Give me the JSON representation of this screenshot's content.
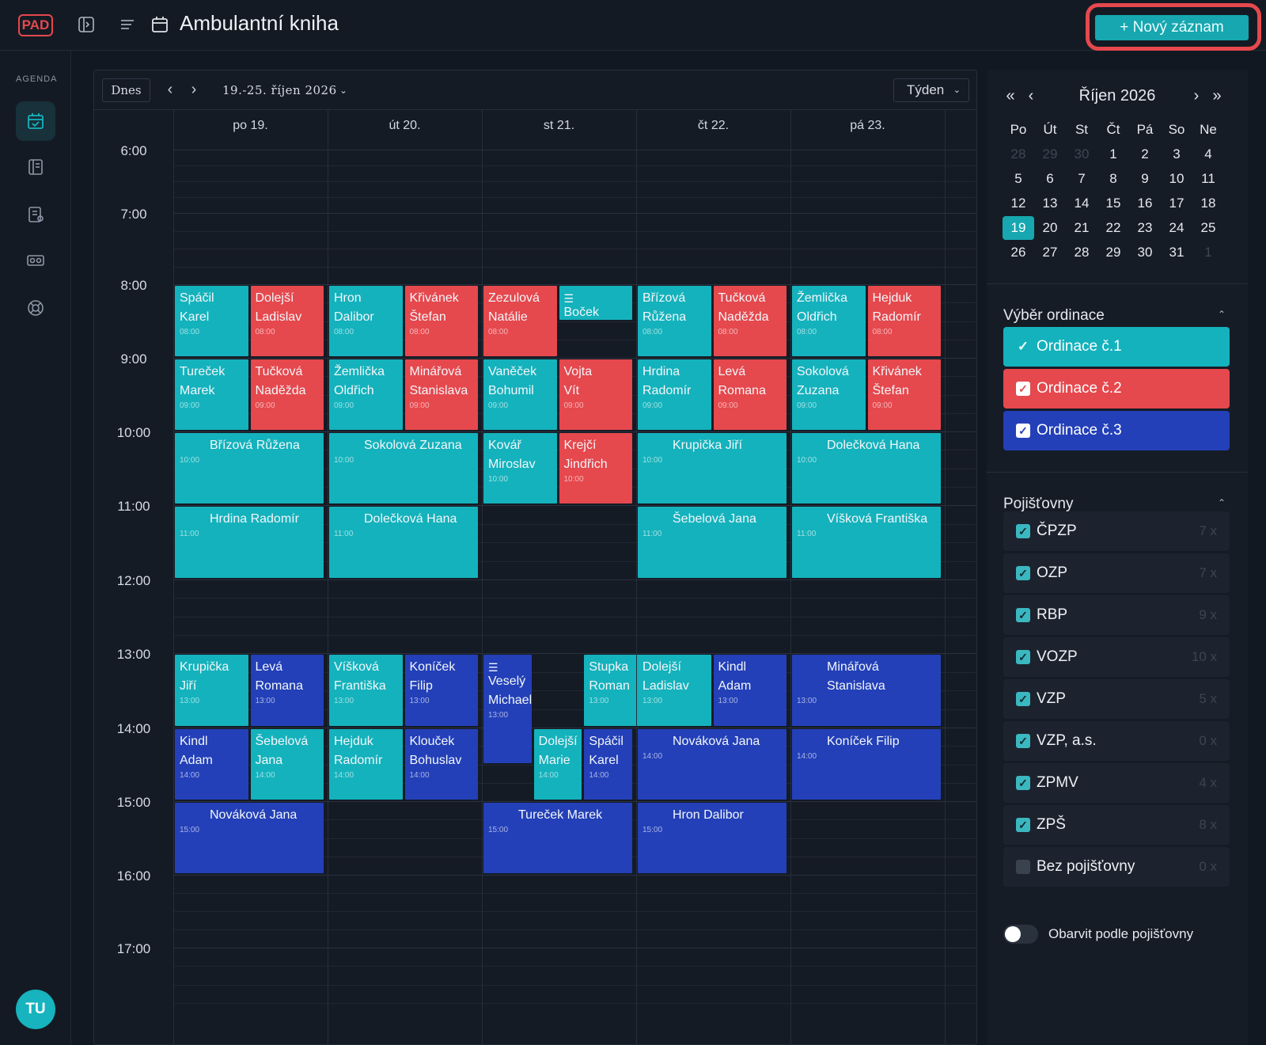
{
  "header": {
    "logo": "PAD",
    "title": "Ambulantní kniha",
    "new_button": "+ Nový záznam"
  },
  "nav": {
    "section_label": "AGENDA",
    "items": [
      "agenda-calendar",
      "records",
      "reports",
      "insurance-cards",
      "help"
    ],
    "avatar": "TU"
  },
  "toolbar": {
    "today": "Dnes",
    "prev": "‹",
    "next": "›",
    "range": "19.-25. říjen 2026",
    "range_chevron": "⌄",
    "view": "Týden",
    "view_chevron": "⌄"
  },
  "days": [
    "po 19.",
    "út 20.",
    "st 21.",
    "čt 22.",
    "pá 23."
  ],
  "times": [
    "6:00",
    "7:00",
    "8:00",
    "9:00",
    "10:00",
    "11:00",
    "12:00",
    "13:00",
    "14:00",
    "15:00",
    "16:00",
    "17:00"
  ],
  "events": [
    {
      "day": 0,
      "col": 0,
      "cols": 2,
      "start": 8,
      "dur": 1,
      "ord": 1,
      "name": "Spáčil\nKarel",
      "time": "08:00"
    },
    {
      "day": 0,
      "col": 1,
      "cols": 2,
      "start": 8,
      "dur": 1,
      "ord": 2,
      "name": "Dolejší\nLadislav",
      "time": "08:00"
    },
    {
      "day": 1,
      "col": 0,
      "cols": 2,
      "start": 8,
      "dur": 1,
      "ord": 1,
      "name": "Hron\nDalibor",
      "time": "08:00"
    },
    {
      "day": 1,
      "col": 1,
      "cols": 2,
      "start": 8,
      "dur": 1,
      "ord": 2,
      "name": "Křivánek\nŠtefan",
      "time": "08:00"
    },
    {
      "day": 2,
      "col": 0,
      "cols": 2,
      "start": 8,
      "dur": 1,
      "ord": 2,
      "name": "Zezulová\nNatálie",
      "time": "08:00"
    },
    {
      "day": 2,
      "col": 1,
      "cols": 2,
      "start": 8,
      "dur": 0.5,
      "ord": 1,
      "name": "Boček\nRudolf",
      "time": "",
      "icon": true
    },
    {
      "day": 3,
      "col": 0,
      "cols": 2,
      "start": 8,
      "dur": 1,
      "ord": 1,
      "name": "Břízová\nRůžena",
      "time": "08:00"
    },
    {
      "day": 3,
      "col": 1,
      "cols": 2,
      "start": 8,
      "dur": 1,
      "ord": 2,
      "name": "Tučková\nNaděžda",
      "time": "08:00"
    },
    {
      "day": 4,
      "col": 0,
      "cols": 2,
      "start": 8,
      "dur": 1,
      "ord": 1,
      "name": "Žemlička\nOldřich",
      "time": "08:00"
    },
    {
      "day": 4,
      "col": 1,
      "cols": 2,
      "start": 8,
      "dur": 1,
      "ord": 2,
      "name": "Hejduk\nRadomír",
      "time": "08:00"
    },
    {
      "day": 0,
      "col": 0,
      "cols": 2,
      "start": 9,
      "dur": 1,
      "ord": 1,
      "name": "Tureček\nMarek",
      "time": "09:00"
    },
    {
      "day": 0,
      "col": 1,
      "cols": 2,
      "start": 9,
      "dur": 1,
      "ord": 2,
      "name": "Tučková\nNaděžda",
      "time": "09:00"
    },
    {
      "day": 1,
      "col": 0,
      "cols": 2,
      "start": 9,
      "dur": 1,
      "ord": 1,
      "name": "Žemlička\nOldřich",
      "time": "09:00"
    },
    {
      "day": 1,
      "col": 1,
      "cols": 2,
      "start": 9,
      "dur": 1,
      "ord": 2,
      "name": "Minářová\nStanislava",
      "time": "09:00"
    },
    {
      "day": 2,
      "col": 0,
      "cols": 2,
      "start": 9,
      "dur": 1,
      "ord": 1,
      "name": "Vaněček\nBohumil",
      "time": "09:00"
    },
    {
      "day": 2,
      "col": 1,
      "cols": 2,
      "start": 9,
      "dur": 1,
      "ord": 2,
      "name": "Vojta\nVít",
      "time": "09:00"
    },
    {
      "day": 3,
      "col": 0,
      "cols": 2,
      "start": 9,
      "dur": 1,
      "ord": 1,
      "name": "Hrdina\nRadomír",
      "time": "09:00"
    },
    {
      "day": 3,
      "col": 1,
      "cols": 2,
      "start": 9,
      "dur": 1,
      "ord": 2,
      "name": "Levá\nRomana",
      "time": "09:00"
    },
    {
      "day": 4,
      "col": 0,
      "cols": 2,
      "start": 9,
      "dur": 1,
      "ord": 1,
      "name": "Sokolová\nZuzana",
      "time": "09:00"
    },
    {
      "day": 4,
      "col": 1,
      "cols": 2,
      "start": 9,
      "dur": 1,
      "ord": 2,
      "name": "Křivánek\nŠtefan",
      "time": "09:00"
    },
    {
      "day": 0,
      "col": 0,
      "cols": 1,
      "start": 10,
      "dur": 1,
      "ord": 1,
      "name": "Břízová Růžena",
      "time": "10:00"
    },
    {
      "day": 1,
      "col": 0,
      "cols": 1,
      "start": 10,
      "dur": 1,
      "ord": 1,
      "name": "Sokolová Zuzana",
      "time": "10:00"
    },
    {
      "day": 2,
      "col": 0,
      "cols": 2,
      "start": 10,
      "dur": 1,
      "ord": 1,
      "name": "Kovář\nMiroslav",
      "time": "10:00"
    },
    {
      "day": 2,
      "col": 1,
      "cols": 2,
      "start": 10,
      "dur": 1,
      "ord": 2,
      "name": "Krejčí\nJindřich",
      "time": "10:00"
    },
    {
      "day": 3,
      "col": 0,
      "cols": 1,
      "start": 10,
      "dur": 1,
      "ord": 1,
      "name": "Krupička Jiří",
      "time": "10:00"
    },
    {
      "day": 4,
      "col": 0,
      "cols": 1,
      "start": 10,
      "dur": 1,
      "ord": 1,
      "name": "Dolečková Hana",
      "time": "10:00"
    },
    {
      "day": 0,
      "col": 0,
      "cols": 1,
      "start": 11,
      "dur": 1,
      "ord": 1,
      "name": "Hrdina Radomír",
      "time": "11:00"
    },
    {
      "day": 1,
      "col": 0,
      "cols": 1,
      "start": 11,
      "dur": 1,
      "ord": 1,
      "name": "Dolečková Hana",
      "time": "11:00"
    },
    {
      "day": 3,
      "col": 0,
      "cols": 1,
      "start": 11,
      "dur": 1,
      "ord": 1,
      "name": "Šebelová Jana",
      "time": "11:00"
    },
    {
      "day": 4,
      "col": 0,
      "cols": 1,
      "start": 11,
      "dur": 1,
      "ord": 1,
      "name": "Víšková Františka",
      "time": "11:00"
    },
    {
      "day": 0,
      "col": 0,
      "cols": 2,
      "start": 13,
      "dur": 1,
      "ord": 1,
      "name": "Krupička\nJiří",
      "time": "13:00"
    },
    {
      "day": 0,
      "col": 1,
      "cols": 2,
      "start": 13,
      "dur": 1,
      "ord": 3,
      "name": "Levá\nRomana",
      "time": "13:00"
    },
    {
      "day": 1,
      "col": 0,
      "cols": 2,
      "start": 13,
      "dur": 1,
      "ord": 1,
      "name": "Víšková\nFrantiška",
      "time": "13:00"
    },
    {
      "day": 1,
      "col": 1,
      "cols": 2,
      "start": 13,
      "dur": 1,
      "ord": 3,
      "name": "Koníček\nFilip",
      "time": "13:00"
    },
    {
      "day": 2,
      "col": 0,
      "cols": 3,
      "start": 13,
      "dur": 1.5,
      "ord": 3,
      "name": "Veselý\nMichael",
      "time": "13:00",
      "icon": true
    },
    {
      "day": 2,
      "col": 1,
      "cols": 1.5,
      "start": 13,
      "dur": 1,
      "ord": 1,
      "name": "Stupka\nRoman",
      "time": "13:00"
    },
    {
      "day": 3,
      "col": 0,
      "cols": 2,
      "start": 13,
      "dur": 1,
      "ord": 1,
      "name": "Dolejší\nLadislav",
      "time": "13:00"
    },
    {
      "day": 3,
      "col": 1,
      "cols": 2,
      "start": 13,
      "dur": 1,
      "ord": 3,
      "name": "Kindl\nAdam",
      "time": "13:00"
    },
    {
      "day": 4,
      "col": 0,
      "cols": 1,
      "start": 13,
      "dur": 1,
      "ord": 3,
      "name": "Minářová Stanislava",
      "time": "13:00"
    },
    {
      "day": 0,
      "col": 0,
      "cols": 2,
      "start": 14,
      "dur": 1,
      "ord": 3,
      "name": "Kindl\nAdam",
      "time": "14:00"
    },
    {
      "day": 0,
      "col": 1,
      "cols": 2,
      "start": 14,
      "dur": 1,
      "ord": 1,
      "name": "Šebelová\nJana",
      "time": "14:00"
    },
    {
      "day": 1,
      "col": 0,
      "cols": 2,
      "start": 14,
      "dur": 1,
      "ord": 1,
      "name": "Hejduk\nRadomír",
      "time": "14:00"
    },
    {
      "day": 1,
      "col": 1,
      "cols": 2,
      "start": 14,
      "dur": 1,
      "ord": 3,
      "name": "Klouček\nBohuslav",
      "time": "14:00"
    },
    {
      "day": 2,
      "col": 1,
      "cols": 3,
      "start": 14,
      "dur": 1,
      "ord": 1,
      "name": "Dolejší\nMarie",
      "time": "14:00"
    },
    {
      "day": 2,
      "col": 2,
      "cols": 3,
      "start": 14,
      "dur": 1,
      "ord": 3,
      "name": "Spáčil\nKarel",
      "time": "14:00"
    },
    {
      "day": 3,
      "col": 0,
      "cols": 1,
      "start": 14,
      "dur": 1,
      "ord": 3,
      "name": "Nováková Jana",
      "time": "14:00"
    },
    {
      "day": 4,
      "col": 0,
      "cols": 1,
      "start": 14,
      "dur": 1,
      "ord": 3,
      "name": "Koníček Filip",
      "time": "14:00"
    },
    {
      "day": 0,
      "col": 0,
      "cols": 1,
      "start": 15,
      "dur": 1,
      "ord": 3,
      "name": "Nováková Jana",
      "time": "15:00"
    },
    {
      "day": 2,
      "col": 0,
      "cols": 1,
      "start": 15,
      "dur": 1,
      "ord": 3,
      "name": "Tureček Marek",
      "time": "15:00"
    },
    {
      "day": 3,
      "col": 0,
      "cols": 1,
      "start": 15,
      "dur": 1,
      "ord": 3,
      "name": "Hron Dalibor",
      "time": "15:00"
    }
  ],
  "mini": {
    "title": "Říjen 2026",
    "first": "«",
    "prev": "‹",
    "next": "›",
    "last": "»",
    "dow": [
      "Po",
      "Út",
      "St",
      "Čt",
      "Pá",
      "So",
      "Ne"
    ],
    "weeks": [
      [
        "28",
        "29",
        "30",
        "1",
        "2",
        "3",
        "4"
      ],
      [
        "5",
        "6",
        "7",
        "8",
        "9",
        "10",
        "11"
      ],
      [
        "12",
        "13",
        "14",
        "15",
        "16",
        "17",
        "18"
      ],
      [
        "19",
        "20",
        "21",
        "22",
        "23",
        "24",
        "25"
      ],
      [
        "26",
        "27",
        "28",
        "29",
        "30",
        "31",
        "1"
      ]
    ],
    "selected": "19"
  },
  "ordinace": {
    "title": "Výběr ordinace",
    "chevron": "⌃",
    "items": [
      {
        "label": "Ordinace č.1",
        "color": "#14b2bc"
      },
      {
        "label": "Ordinace č.2",
        "color": "#e5484d"
      },
      {
        "label": "Ordinace č.3",
        "color": "#2340b8"
      }
    ]
  },
  "pojistovny": {
    "title": "Pojišťovny",
    "chevron": "⌃",
    "items": [
      {
        "label": "ČPZP",
        "count": "7 x",
        "checked": true
      },
      {
        "label": "OZP",
        "count": "7 x",
        "checked": true
      },
      {
        "label": "RBP",
        "count": "9 x",
        "checked": true
      },
      {
        "label": "VOZP",
        "count": "10 x",
        "checked": true
      },
      {
        "label": "VZP",
        "count": "5 x",
        "checked": true
      },
      {
        "label": "VZP, a.s.",
        "count": "0 x",
        "checked": true
      },
      {
        "label": "ZPMV",
        "count": "4 x",
        "checked": true
      },
      {
        "label": "ZPŠ",
        "count": "8 x",
        "checked": true
      },
      {
        "label": "Bez pojišťovny",
        "count": "0 x",
        "checked": false
      }
    ]
  },
  "toggle_label": "Obarvit podle pojišťovny",
  "colors": {
    "ord1": "#14b2bc",
    "ord2": "#e5484d",
    "ord3": "#2340b8",
    "accent": "#17a7b0"
  }
}
